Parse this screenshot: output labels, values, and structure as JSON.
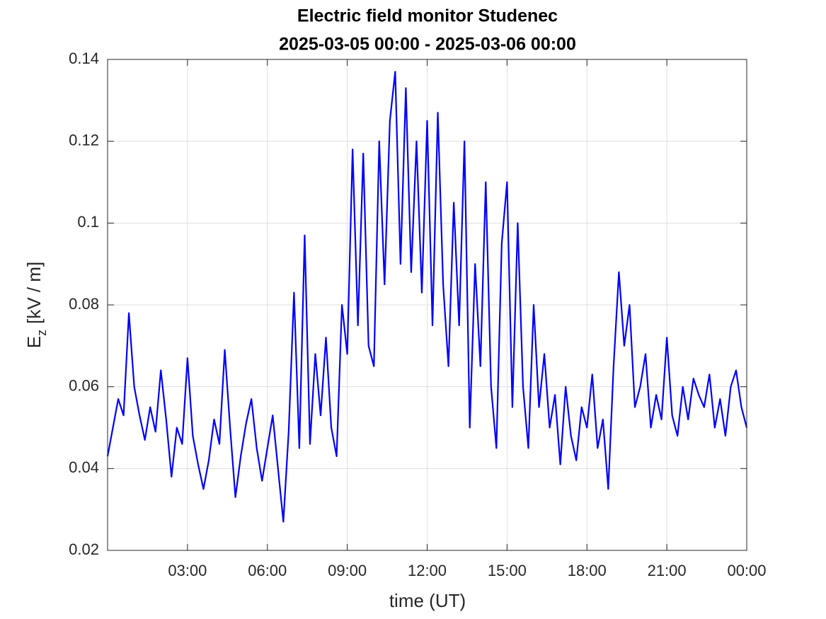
{
  "chart_data": {
    "type": "line",
    "title": "Electric field monitor Studenec",
    "subtitle": "2025-03-05 00:00 - 2025-03-06 00:00",
    "xlabel": "time (UT)",
    "ylabel_symbol": "E",
    "ylabel_subscript": "z",
    "ylabel_unit": "[kV / m]",
    "x": [
      0,
      0.2,
      0.4,
      0.6,
      0.8,
      1,
      1.2,
      1.4,
      1.6,
      1.8,
      2,
      2.2,
      2.4,
      2.6,
      2.8,
      3,
      3.2,
      3.4,
      3.6,
      3.8,
      4,
      4.2,
      4.4,
      4.6,
      4.8,
      5,
      5.2,
      5.4,
      5.6,
      5.8,
      6,
      6.2,
      6.4,
      6.6,
      6.8,
      7,
      7.2,
      7.4,
      7.6,
      7.8,
      8,
      8.2,
      8.4,
      8.6,
      8.8,
      9,
      9.2,
      9.4,
      9.6,
      9.8,
      10,
      10.2,
      10.4,
      10.6,
      10.8,
      11,
      11.2,
      11.4,
      11.6,
      11.8,
      12,
      12.2,
      12.4,
      12.6,
      12.8,
      13,
      13.2,
      13.4,
      13.6,
      13.8,
      14,
      14.2,
      14.4,
      14.6,
      14.8,
      15,
      15.2,
      15.4,
      15.6,
      15.8,
      16,
      16.2,
      16.4,
      16.6,
      16.8,
      17,
      17.2,
      17.4,
      17.6,
      17.8,
      18,
      18.2,
      18.4,
      18.6,
      18.8,
      19,
      19.2,
      19.4,
      19.6,
      19.8,
      20,
      20.2,
      20.4,
      20.6,
      20.8,
      21,
      21.2,
      21.4,
      21.6,
      21.8,
      22,
      22.2,
      22.4,
      22.6,
      22.8,
      23,
      23.2,
      23.4,
      23.6,
      23.8,
      24
    ],
    "series": [
      {
        "color": "#0000ff",
        "values": [
          0.043,
          0.05,
          0.057,
          0.053,
          0.078,
          0.06,
          0.053,
          0.047,
          0.055,
          0.049,
          0.064,
          0.052,
          0.038,
          0.05,
          0.046,
          0.067,
          0.048,
          0.041,
          0.035,
          0.042,
          0.052,
          0.046,
          0.069,
          0.05,
          0.033,
          0.043,
          0.051,
          0.057,
          0.045,
          0.037,
          0.045,
          0.053,
          0.04,
          0.027,
          0.049,
          0.083,
          0.045,
          0.097,
          0.046,
          0.068,
          0.053,
          0.072,
          0.05,
          0.043,
          0.08,
          0.068,
          0.118,
          0.075,
          0.117,
          0.07,
          0.065,
          0.12,
          0.085,
          0.125,
          0.137,
          0.09,
          0.133,
          0.088,
          0.12,
          0.083,
          0.125,
          0.075,
          0.127,
          0.085,
          0.065,
          0.105,
          0.075,
          0.12,
          0.05,
          0.09,
          0.065,
          0.11,
          0.06,
          0.045,
          0.095,
          0.11,
          0.055,
          0.1,
          0.06,
          0.045,
          0.08,
          0.055,
          0.068,
          0.05,
          0.058,
          0.041,
          0.06,
          0.048,
          0.042,
          0.055,
          0.05,
          0.063,
          0.045,
          0.052,
          0.035,
          0.065,
          0.088,
          0.07,
          0.08,
          0.055,
          0.06,
          0.068,
          0.05,
          0.058,
          0.052,
          0.072,
          0.053,
          0.048,
          0.06,
          0.052,
          0.062,
          0.058,
          0.055,
          0.063,
          0.05,
          0.057,
          0.048,
          0.06,
          0.064,
          0.055,
          0.05
        ]
      }
    ],
    "xlim": [
      0,
      24
    ],
    "xticks": [
      {
        "value": 3,
        "label": "03:00"
      },
      {
        "value": 6,
        "label": "06:00"
      },
      {
        "value": 9,
        "label": "09:00"
      },
      {
        "value": 12,
        "label": "12:00"
      },
      {
        "value": 15,
        "label": "15:00"
      },
      {
        "value": 18,
        "label": "18:00"
      },
      {
        "value": 21,
        "label": "21:00"
      },
      {
        "value": 24,
        "label": "00:00"
      }
    ],
    "ylim": [
      0.02,
      0.14
    ],
    "yticks": [
      0.02,
      0.04,
      0.06,
      0.08,
      0.1,
      0.12,
      0.14
    ],
    "grid": true
  }
}
